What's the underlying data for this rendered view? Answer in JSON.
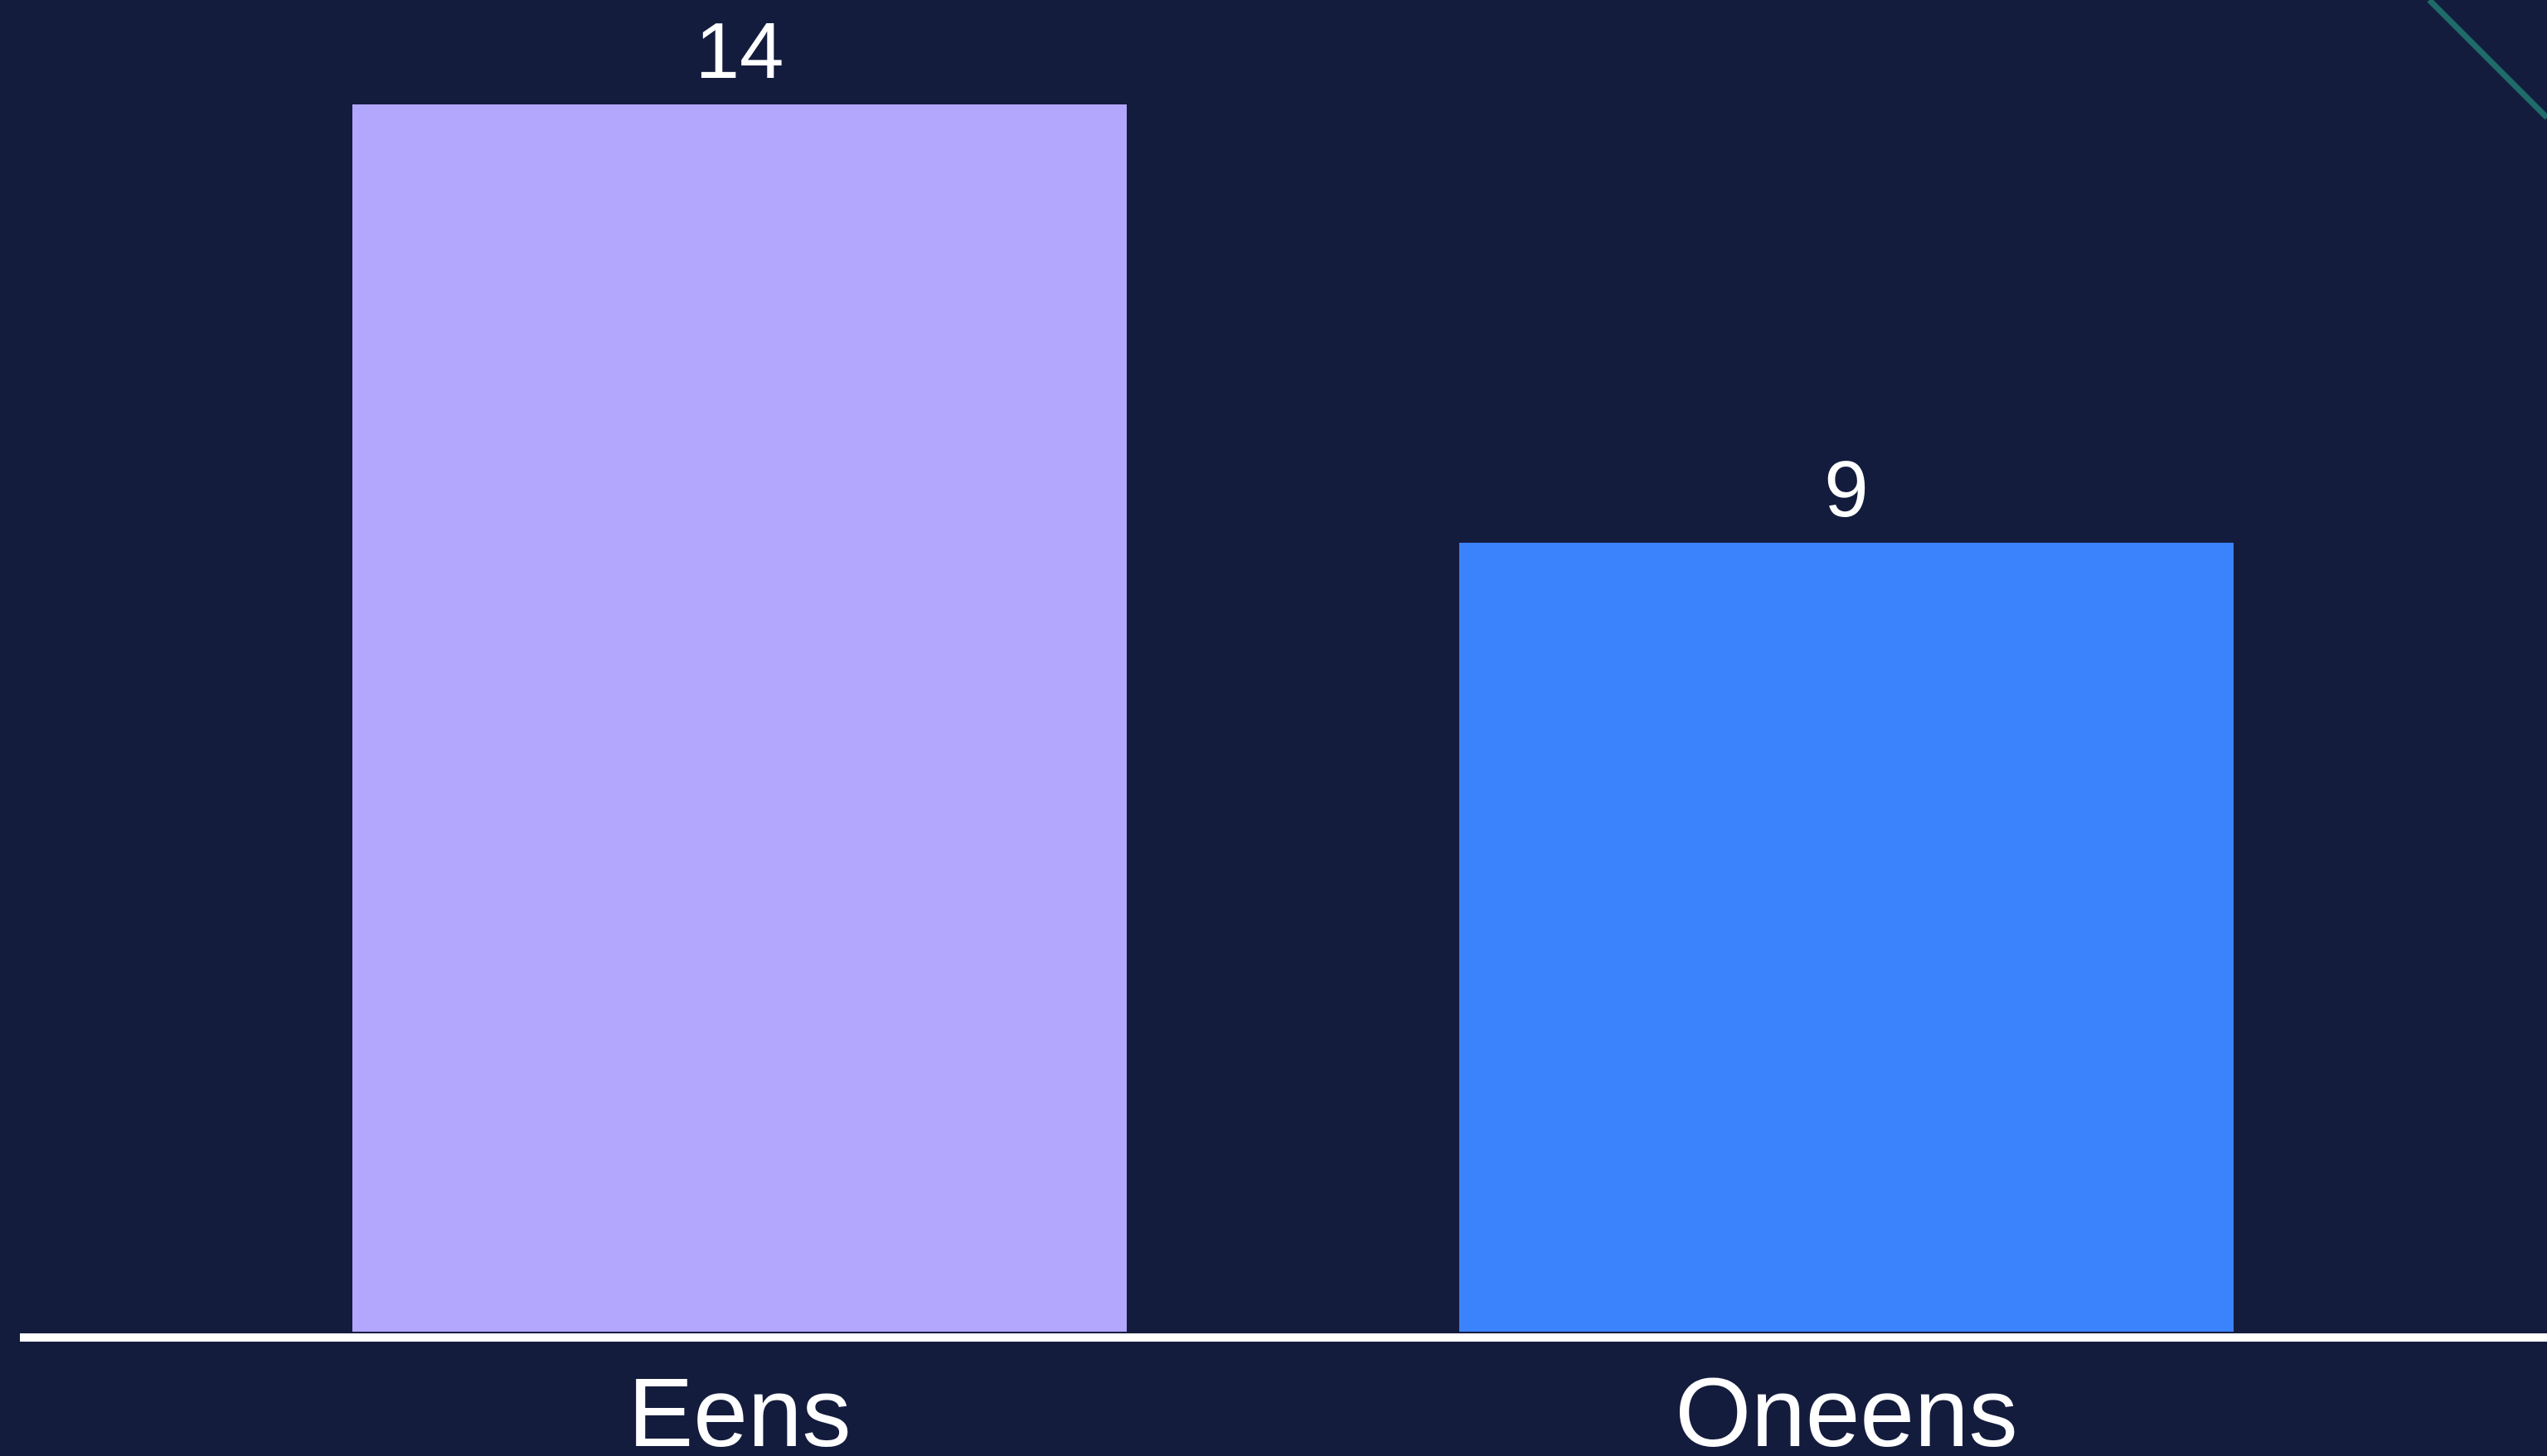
{
  "chart_data": {
    "type": "bar",
    "categories": [
      "Eens",
      "Oneens"
    ],
    "values": [
      14,
      9
    ],
    "data_labels": [
      "14",
      "9"
    ],
    "title": "",
    "xlabel": "",
    "ylabel": "",
    "ylim": [
      0,
      14
    ],
    "grid": false,
    "legend": "none",
    "bar_colors": [
      "#b3a6fd",
      "#3b82fd"
    ]
  },
  "colors": {
    "background": "#141c3d",
    "axis_line": "#ffffff",
    "text": "#ffffff",
    "decoration_line": "#1f6b68"
  }
}
